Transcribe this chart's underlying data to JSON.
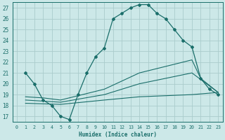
{
  "xlabel": "Humidex (Indice chaleur)",
  "bg_color": "#cce8e8",
  "grid_color": "#aacccc",
  "line_color": "#1a6e6a",
  "xlim": [
    -0.5,
    23.5
  ],
  "ylim": [
    16.5,
    27.5
  ],
  "xticks": [
    0,
    1,
    2,
    3,
    4,
    5,
    6,
    7,
    8,
    9,
    10,
    11,
    12,
    13,
    14,
    15,
    16,
    17,
    18,
    19,
    20,
    21,
    22,
    23
  ],
  "yticks": [
    17,
    18,
    19,
    20,
    21,
    22,
    23,
    24,
    25,
    26,
    27
  ],
  "line1_x": [
    1,
    2,
    3,
    4,
    5,
    6,
    7,
    8,
    9,
    10,
    11,
    12,
    13,
    14,
    15,
    16,
    17,
    18,
    19,
    20,
    21,
    22,
    23
  ],
  "line1_y": [
    21,
    20,
    18.5,
    18,
    17,
    16.7,
    19.0,
    21.0,
    22.5,
    23.3,
    26.0,
    26.5,
    27.0,
    27.3,
    27.3,
    26.5,
    26.0,
    25.0,
    24.0,
    23.4,
    20.5,
    19.5,
    19.0
  ],
  "line2_x": [
    1,
    3,
    5,
    10,
    14,
    20,
    21,
    23
  ],
  "line2_y": [
    18.8,
    18.7,
    18.5,
    19.5,
    21.0,
    22.2,
    20.5,
    19.2
  ],
  "line3_x": [
    1,
    3,
    5,
    10,
    14,
    20,
    23
  ],
  "line3_y": [
    18.5,
    18.4,
    18.3,
    19.0,
    20.0,
    21.0,
    19.2
  ],
  "line4_x": [
    1,
    5,
    10,
    14,
    20,
    23
  ],
  "line4_y": [
    18.2,
    18.1,
    18.5,
    18.8,
    19.0,
    19.2
  ]
}
